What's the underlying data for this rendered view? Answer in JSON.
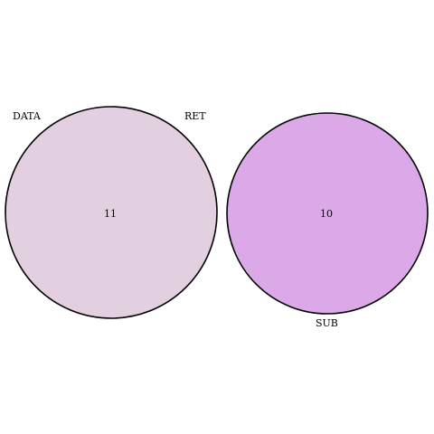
{
  "diagram": {
    "type": "venn",
    "sets": [
      {
        "label": "DATA",
        "color": "#e2cfe0"
      },
      {
        "label": "RET",
        "color": "#e2cfe0"
      },
      {
        "label": "SUB",
        "color": "#dba9e8"
      }
    ],
    "regions": [
      {
        "sets": [
          "DATA",
          "RET"
        ],
        "count": "11",
        "color": "#e2cfe0"
      },
      {
        "sets": [
          "SUB"
        ],
        "count": "10",
        "color": "#dba9e8"
      }
    ],
    "outline_color": "#000000"
  }
}
